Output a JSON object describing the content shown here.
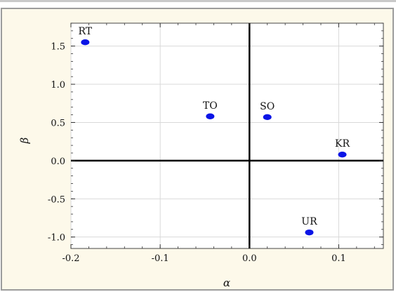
{
  "chart_data": {
    "type": "scatter",
    "xlabel": "α",
    "ylabel": "β",
    "xlim": [
      -0.2,
      0.15
    ],
    "ylim": [
      -1.15,
      1.8
    ],
    "xticks": [
      -0.2,
      -0.1,
      0.0,
      0.1
    ],
    "yticks": [
      -1.0,
      -0.5,
      0.0,
      0.5,
      1.0,
      1.5
    ],
    "xtick_labels": [
      "-0.2",
      "-0.1",
      "0.0",
      "0.1"
    ],
    "ytick_labels": [
      "-1.0",
      "-0.5",
      "0.0",
      "0.5",
      "1.0",
      "1.5"
    ],
    "grid": true,
    "marker_color": "#0a14e6",
    "points": [
      {
        "label": "RT",
        "x": -0.184,
        "y": 1.55
      },
      {
        "label": "TO",
        "x": -0.044,
        "y": 0.58
      },
      {
        "label": "SO",
        "x": 0.02,
        "y": 0.57
      },
      {
        "label": "KR",
        "x": 0.104,
        "y": 0.08
      },
      {
        "label": "UR",
        "x": 0.067,
        "y": -0.94
      }
    ]
  }
}
